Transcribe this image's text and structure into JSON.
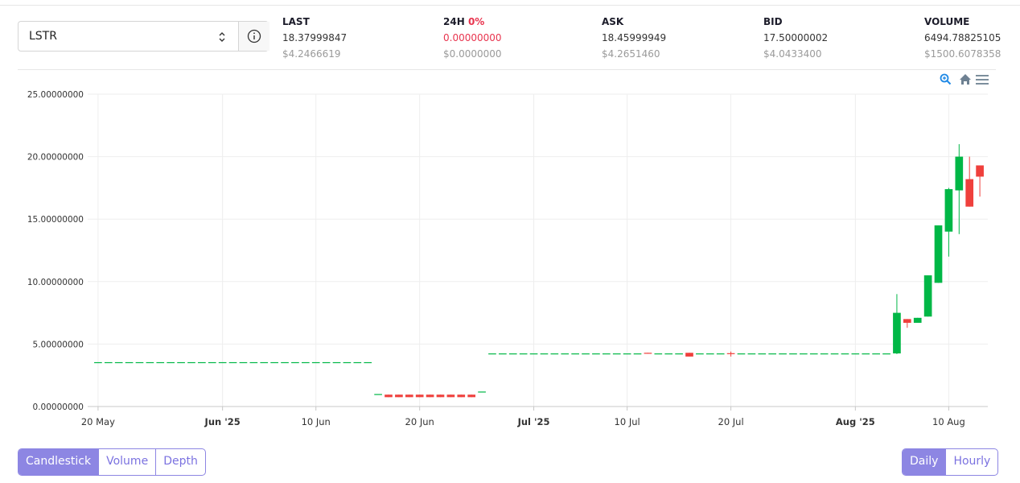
{
  "selector": {
    "symbol": "LSTR"
  },
  "stats": [
    {
      "label": "LAST",
      "value": "18.37999847",
      "usd": "$4.2466619"
    },
    {
      "label": "24H",
      "change": "0%",
      "value": "0.00000000",
      "usd": "$0.0000000"
    },
    {
      "label": "ASK",
      "value": "18.45999949",
      "usd": "$4.2651460"
    },
    {
      "label": "BID",
      "value": "17.50000002",
      "usd": "$4.0433400"
    },
    {
      "label": "VOLUME",
      "value": "6494.78825105",
      "usd": "$1500.6078358"
    }
  ],
  "chart_types": [
    "Candlestick",
    "Volume",
    "Depth"
  ],
  "intervals": [
    "Daily",
    "Hourly"
  ],
  "chart_data": {
    "type": "candlestick",
    "x": [
      "2025-05-20",
      "2025-05-21",
      "2025-05-22",
      "2025-05-23",
      "2025-05-24",
      "2025-05-25",
      "2025-05-26",
      "2025-05-27",
      "2025-05-28",
      "2025-05-29",
      "2025-05-30",
      "2025-05-31",
      "2025-06-01",
      "2025-06-02",
      "2025-06-03",
      "2025-06-04",
      "2025-06-05",
      "2025-06-06",
      "2025-06-07",
      "2025-06-08",
      "2025-06-09",
      "2025-06-10",
      "2025-06-11",
      "2025-06-12",
      "2025-06-13",
      "2025-06-14",
      "2025-06-15",
      "2025-06-16",
      "2025-06-17",
      "2025-06-18",
      "2025-06-19",
      "2025-06-20",
      "2025-06-21",
      "2025-06-22",
      "2025-06-23",
      "2025-06-24",
      "2025-06-25",
      "2025-06-26",
      "2025-06-27",
      "2025-06-28",
      "2025-06-29",
      "2025-06-30",
      "2025-07-01",
      "2025-07-02",
      "2025-07-03",
      "2025-07-04",
      "2025-07-05",
      "2025-07-06",
      "2025-07-07",
      "2025-07-08",
      "2025-07-09",
      "2025-07-10",
      "2025-07-11",
      "2025-07-12",
      "2025-07-13",
      "2025-07-14",
      "2025-07-15",
      "2025-07-16",
      "2025-07-17",
      "2025-07-18",
      "2025-07-19",
      "2025-07-20",
      "2025-07-21",
      "2025-07-22",
      "2025-07-23",
      "2025-07-24",
      "2025-07-25",
      "2025-07-26",
      "2025-07-27",
      "2025-07-28",
      "2025-07-29",
      "2025-07-30",
      "2025-07-31",
      "2025-08-01",
      "2025-08-02",
      "2025-08-03",
      "2025-08-04",
      "2025-08-05",
      "2025-08-06",
      "2025-08-07",
      "2025-08-08",
      "2025-08-09",
      "2025-08-10",
      "2025-08-11",
      "2025-08-12",
      "2025-08-13"
    ],
    "open": [
      3.55,
      3.55,
      3.55,
      3.55,
      3.55,
      3.55,
      3.55,
      3.55,
      3.55,
      3.55,
      3.55,
      3.55,
      3.55,
      3.55,
      3.55,
      3.55,
      3.55,
      3.55,
      3.55,
      3.55,
      3.55,
      3.55,
      3.55,
      3.55,
      3.55,
      3.55,
      3.55,
      1.0,
      0.95,
      0.95,
      0.95,
      0.95,
      0.95,
      0.95,
      0.95,
      0.95,
      0.95,
      1.2,
      4.25,
      4.25,
      4.25,
      4.25,
      4.25,
      4.25,
      4.25,
      4.25,
      4.25,
      4.25,
      4.25,
      4.25,
      4.25,
      4.25,
      4.25,
      4.3,
      4.25,
      4.25,
      4.25,
      4.3,
      4.25,
      4.25,
      4.25,
      4.27,
      4.25,
      4.25,
      4.25,
      4.25,
      4.25,
      4.25,
      4.25,
      4.25,
      4.25,
      4.25,
      4.25,
      4.25,
      4.25,
      4.25,
      4.25,
      4.25,
      7.0,
      6.7,
      7.2,
      9.9,
      14.0,
      17.3,
      18.2,
      19.3
    ],
    "high": [
      3.55,
      3.55,
      3.55,
      3.55,
      3.55,
      3.55,
      3.55,
      3.55,
      3.55,
      3.55,
      3.55,
      3.55,
      3.55,
      3.55,
      3.55,
      3.55,
      3.55,
      3.55,
      3.55,
      3.55,
      3.55,
      3.55,
      3.55,
      3.55,
      3.55,
      3.55,
      3.55,
      1.0,
      0.95,
      0.95,
      0.95,
      0.95,
      0.95,
      0.95,
      0.95,
      0.95,
      0.95,
      1.2,
      4.25,
      4.25,
      4.25,
      4.25,
      4.25,
      4.25,
      4.25,
      4.25,
      4.25,
      4.25,
      4.25,
      4.25,
      4.25,
      4.25,
      4.25,
      4.3,
      4.25,
      4.25,
      4.25,
      4.3,
      4.25,
      4.25,
      4.25,
      4.4,
      4.25,
      4.25,
      4.25,
      4.25,
      4.25,
      4.25,
      4.25,
      4.25,
      4.25,
      4.25,
      4.25,
      4.25,
      4.25,
      4.25,
      4.25,
      9.0,
      7.0,
      7.1,
      10.5,
      14.5,
      17.5,
      21.0,
      20.0,
      19.3
    ],
    "low": [
      3.55,
      3.55,
      3.55,
      3.55,
      3.55,
      3.55,
      3.55,
      3.55,
      3.55,
      3.55,
      3.55,
      3.55,
      3.55,
      3.55,
      3.55,
      3.55,
      3.55,
      3.55,
      3.55,
      3.55,
      3.55,
      3.55,
      3.55,
      3.55,
      3.55,
      3.55,
      3.55,
      1.0,
      0.75,
      0.75,
      0.75,
      0.75,
      0.75,
      0.75,
      0.75,
      0.75,
      0.75,
      1.2,
      4.25,
      4.25,
      4.25,
      4.25,
      4.25,
      4.25,
      4.25,
      4.25,
      4.25,
      4.25,
      4.25,
      4.25,
      4.25,
      4.25,
      4.25,
      4.25,
      4.25,
      4.25,
      4.25,
      4.0,
      4.25,
      4.25,
      4.25,
      4.0,
      4.25,
      4.25,
      4.25,
      4.25,
      4.25,
      4.25,
      4.25,
      4.25,
      4.25,
      4.25,
      4.25,
      4.25,
      4.25,
      4.25,
      4.25,
      4.2,
      6.3,
      6.7,
      7.2,
      9.9,
      12.0,
      13.8,
      16.0,
      16.8
    ],
    "close": [
      3.55,
      3.55,
      3.55,
      3.55,
      3.55,
      3.55,
      3.55,
      3.55,
      3.55,
      3.55,
      3.55,
      3.55,
      3.55,
      3.55,
      3.55,
      3.55,
      3.55,
      3.55,
      3.55,
      3.55,
      3.55,
      3.55,
      3.55,
      3.55,
      3.55,
      3.55,
      3.55,
      1.0,
      0.75,
      0.75,
      0.75,
      0.75,
      0.75,
      0.75,
      0.75,
      0.75,
      0.75,
      1.2,
      4.25,
      4.25,
      4.25,
      4.25,
      4.25,
      4.25,
      4.25,
      4.25,
      4.25,
      4.25,
      4.25,
      4.25,
      4.25,
      4.25,
      4.25,
      4.25,
      4.25,
      4.25,
      4.25,
      4.0,
      4.25,
      4.25,
      4.25,
      4.23,
      4.25,
      4.25,
      4.25,
      4.25,
      4.25,
      4.25,
      4.25,
      4.25,
      4.25,
      4.25,
      4.25,
      4.25,
      4.25,
      4.25,
      4.25,
      7.5,
      6.7,
      7.1,
      10.5,
      14.5,
      17.4,
      20.0,
      16.0,
      18.4
    ],
    "up_color": "#00b746",
    "down_color": "#ef403c",
    "xlim": [
      "2025-05-19",
      "2025-08-14"
    ],
    "xticks": [
      {
        "value": "2025-05-20",
        "label": "20 May"
      },
      {
        "value": "2025-06-01",
        "label": "Jun '25"
      },
      {
        "value": "2025-06-10",
        "label": "10 Jun"
      },
      {
        "value": "2025-06-20",
        "label": "20 Jun"
      },
      {
        "value": "2025-07-01",
        "label": "Jul '25"
      },
      {
        "value": "2025-07-10",
        "label": "10 Jul"
      },
      {
        "value": "2025-07-20",
        "label": "20 Jul"
      },
      {
        "value": "2025-08-01",
        "label": "Aug '25"
      },
      {
        "value": "2025-08-10",
        "label": "10 Aug"
      }
    ],
    "ylim": [
      0,
      25
    ],
    "yticks": [
      {
        "value": 0,
        "label": "0.00000000"
      },
      {
        "value": 5,
        "label": "5.00000000"
      },
      {
        "value": 10,
        "label": "10.00000000"
      },
      {
        "value": 15,
        "label": "15.00000000"
      },
      {
        "value": 20,
        "label": "20.00000000"
      },
      {
        "value": 25,
        "label": "25.00000000"
      }
    ],
    "grid": true
  }
}
